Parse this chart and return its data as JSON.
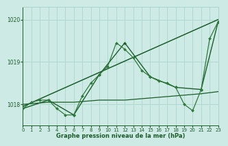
{
  "bg_color": "#ceeae4",
  "grid_color": "#a8d5ce",
  "line_color_dark": "#1a5c2a",
  "xlabel": "Graphe pression niveau de la mer (hPa)",
  "ylim": [
    1017.5,
    1020.3
  ],
  "xlim": [
    0,
    23
  ],
  "yticks": [
    1018,
    1019,
    1020
  ],
  "xticks": [
    0,
    1,
    2,
    3,
    4,
    5,
    6,
    7,
    8,
    9,
    10,
    11,
    12,
    13,
    14,
    15,
    16,
    17,
    18,
    19,
    20,
    21,
    22,
    23
  ],
  "series": [
    {
      "comment": "hourly detailed line with small diamond markers",
      "x": [
        0,
        1,
        2,
        3,
        4,
        5,
        6,
        7,
        8,
        9,
        10,
        11,
        12,
        13,
        14,
        15,
        16,
        17,
        18,
        19,
        20,
        21,
        22,
        23
      ],
      "y": [
        1017.9,
        1018.05,
        1018.1,
        1018.1,
        1017.9,
        1017.75,
        1017.75,
        1018.2,
        1018.5,
        1018.7,
        1018.9,
        1019.45,
        1019.3,
        1019.1,
        1018.8,
        1018.65,
        1018.55,
        1018.5,
        1018.4,
        1018.0,
        1017.85,
        1018.35,
        1019.55,
        1019.95
      ],
      "color": "#2d7a3a",
      "lw": 0.9,
      "marker": "D",
      "ms": 2.0,
      "zorder": 4
    },
    {
      "comment": "straight trend line from x=0 to x=23",
      "x": [
        0,
        23
      ],
      "y": [
        1017.95,
        1020.0
      ],
      "color": "#1a5c2a",
      "lw": 1.1,
      "marker": null,
      "ms": 0,
      "zorder": 2
    },
    {
      "comment": "3-hourly line with cross/plus markers - zigzag pattern",
      "x": [
        0,
        3,
        6,
        9,
        12,
        15,
        18,
        21,
        23
      ],
      "y": [
        1017.9,
        1018.1,
        1017.75,
        1018.7,
        1019.45,
        1018.65,
        1018.4,
        1018.35,
        1019.95
      ],
      "color": "#1a5c2a",
      "lw": 1.0,
      "marker": "P",
      "ms": 2.5,
      "zorder": 3
    },
    {
      "comment": "flat slowly-varying line near 1018 (forecast/model)",
      "x": [
        0,
        3,
        6,
        9,
        12,
        15,
        18,
        21,
        23
      ],
      "y": [
        1018.0,
        1018.05,
        1018.05,
        1018.1,
        1018.1,
        1018.15,
        1018.2,
        1018.25,
        1018.3
      ],
      "color": "#1a5c2a",
      "lw": 0.9,
      "marker": null,
      "ms": 0,
      "zorder": 2
    }
  ]
}
